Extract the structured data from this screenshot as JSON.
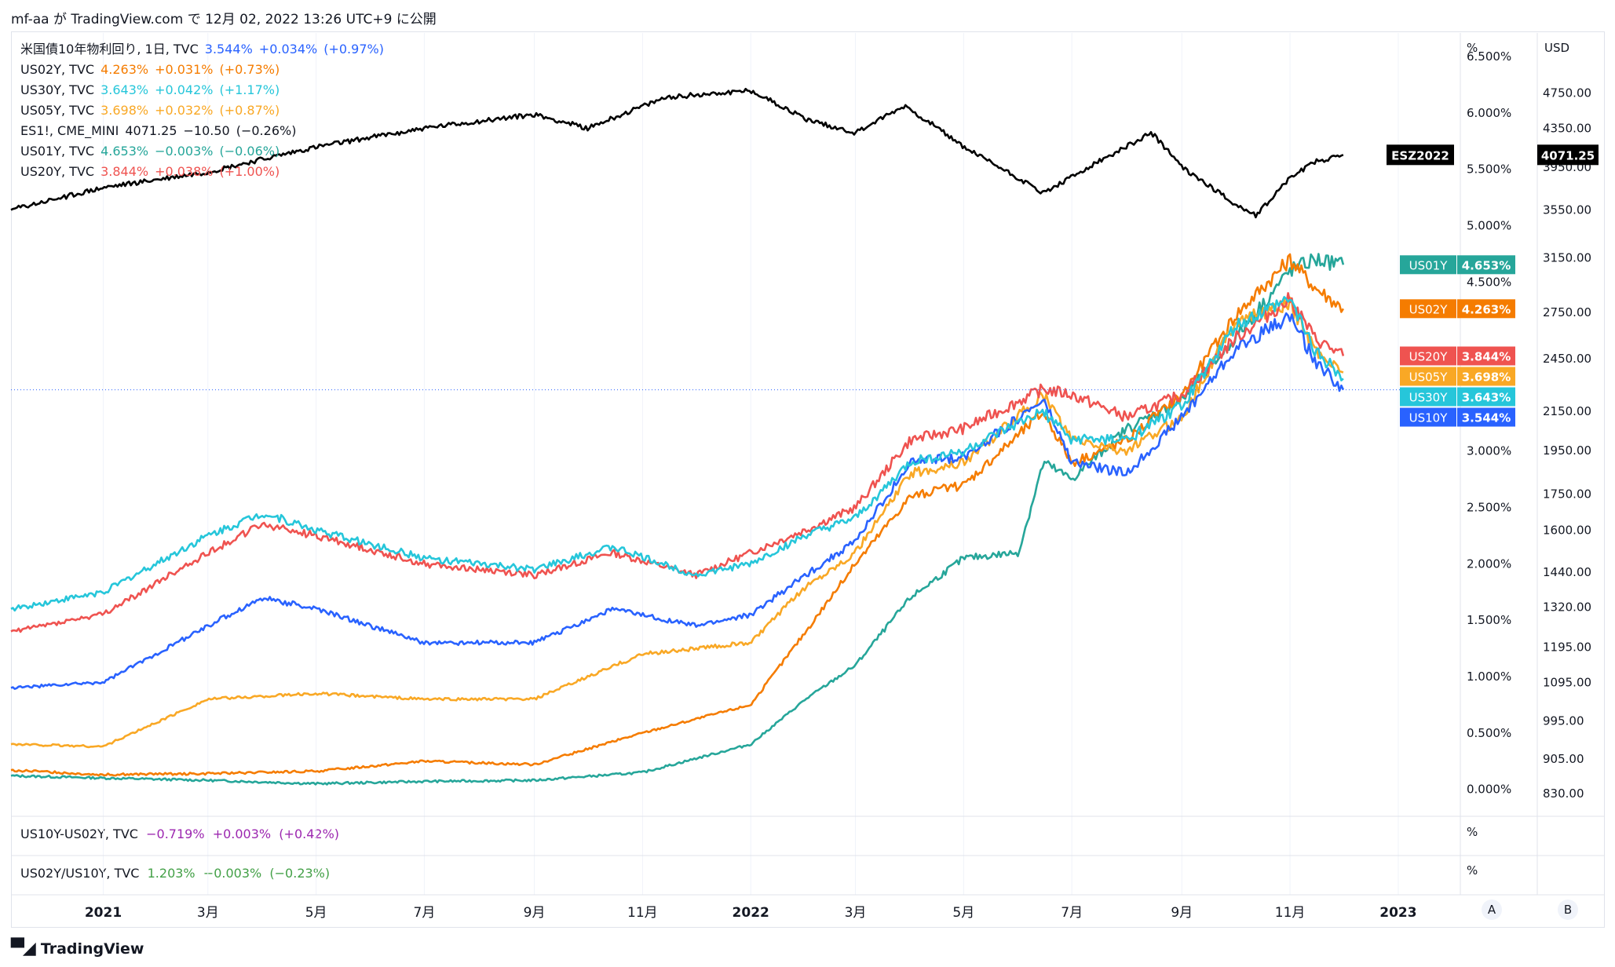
{
  "header": {
    "author": "mf-aa",
    "publish_prefix": "が",
    "site": "TradingView.com",
    "publish_mid": "で",
    "timestamp": "12月 02, 2022 13:26 UTC+9",
    "publish_suffix": "に公開"
  },
  "footer": {
    "brand": "TradingView"
  },
  "axis_buttons": {
    "auto": "A",
    "log": "B"
  },
  "legend": [
    {
      "symbol": "米国債10年物利回り, 1日, TVC",
      "last": "3.544%",
      "change": "+0.034%",
      "change_pct": "(+0.97%)",
      "color": "#2962ff"
    },
    {
      "symbol": "US02Y, TVC",
      "last": "4.263%",
      "change": "+0.031%",
      "change_pct": "(+0.73%)",
      "color": "#f57c00"
    },
    {
      "symbol": "US30Y, TVC",
      "last": "3.643%",
      "change": "+0.042%",
      "change_pct": "(+1.17%)",
      "color": "#26c6da"
    },
    {
      "symbol": "US05Y, TVC",
      "last": "3.698%",
      "change": "+0.032%",
      "change_pct": "(+0.87%)",
      "color": "#f9a825"
    },
    {
      "symbol": "ES1!, CME_MINI",
      "last": "4071.25",
      "change": "−10.50",
      "change_pct": "(−0.26%)",
      "color": "#000000"
    },
    {
      "symbol": "US01Y, TVC",
      "last": "4.653%",
      "change": "−0.003%",
      "change_pct": "(−0.06%)",
      "color": "#26a69a"
    },
    {
      "symbol": "US20Y, TVC",
      "last": "3.844%",
      "change": "+0.038%",
      "change_pct": "(+1.00%)",
      "color": "#ef5350"
    }
  ],
  "sub_panes": [
    {
      "symbol": "US10Y-US02Y, TVC",
      "last": "−0.719%",
      "change": "+0.003%",
      "change_pct": "(+0.42%)",
      "color": "#9c27b0",
      "unit": "%"
    },
    {
      "symbol": "US02Y/US10Y, TVC",
      "last": "1.203%",
      "change": "−0.003%",
      "change_pct": "(−0.23%)",
      "color": "#43a047",
      "unit": "%"
    }
  ],
  "chart_data": {
    "type": "line",
    "x_ticks": [
      "2021",
      "3月",
      "5月",
      "7月",
      "9月",
      "11月",
      "2022",
      "3月",
      "5月",
      "7月",
      "9月",
      "11月",
      "2023"
    ],
    "x_tick_dates": [
      "2021-01-01",
      "2021-03-01",
      "2021-05-01",
      "2021-07-01",
      "2021-09-01",
      "2021-11-01",
      "2022-01-01",
      "2022-03-01",
      "2022-05-01",
      "2022-07-01",
      "2022-09-01",
      "2022-11-01",
      "2023-01-01"
    ],
    "x_range": [
      "2020-11-10",
      "2023-02-05"
    ],
    "left_axis": {
      "unit": "%",
      "ticks": [
        "0.000%",
        "0.500%",
        "1.000%",
        "1.500%",
        "2.000%",
        "2.500%",
        "3.000%",
        "4.500%",
        "5.000%",
        "5.500%",
        "6.000%",
        "6.500%"
      ],
      "range": [
        -0.1,
        6.5
      ]
    },
    "right_axis": {
      "unit": "USD",
      "scale": "log",
      "ticks": [
        "830.00",
        "905.00",
        "995.00",
        "1095.00",
        "1195.00",
        "1320.00",
        "1440.00",
        "1600.00",
        "1750.00",
        "1950.00",
        "2150.00",
        "2450.00",
        "2750.00",
        "3150.00",
        "3550.00",
        "3950.00",
        "4350.00",
        "4750.00"
      ],
      "range": [
        800,
        5100
      ]
    },
    "yield_axis_note": "yields are each auto-scaled to the pane",
    "series": [
      {
        "name": "US01Y",
        "color": "#26a69a",
        "axis": "left",
        "label": "4.653%",
        "points": [
          [
            "2020-11-10",
            0.12
          ],
          [
            "2021-01-01",
            0.1
          ],
          [
            "2021-03-01",
            0.08
          ],
          [
            "2021-05-01",
            0.05
          ],
          [
            "2021-07-01",
            0.07
          ],
          [
            "2021-09-01",
            0.08
          ],
          [
            "2021-11-01",
            0.15
          ],
          [
            "2022-01-01",
            0.4
          ],
          [
            "2022-02-01",
            0.8
          ],
          [
            "2022-03-01",
            1.1
          ],
          [
            "2022-04-01",
            1.7
          ],
          [
            "2022-05-01",
            2.05
          ],
          [
            "2022-06-01",
            2.1
          ],
          [
            "2022-06-15",
            2.9
          ],
          [
            "2022-07-01",
            2.75
          ],
          [
            "2022-08-01",
            3.2
          ],
          [
            "2022-09-01",
            3.45
          ],
          [
            "2022-10-01",
            4.0
          ],
          [
            "2022-11-01",
            4.6
          ],
          [
            "2022-11-15",
            4.7
          ],
          [
            "2022-12-01",
            4.653
          ]
        ]
      },
      {
        "name": "US02Y",
        "color": "#f57c00",
        "axis": "left",
        "label": "4.263%",
        "points": [
          [
            "2020-11-10",
            0.17
          ],
          [
            "2021-01-01",
            0.13
          ],
          [
            "2021-03-01",
            0.14
          ],
          [
            "2021-05-01",
            0.16
          ],
          [
            "2021-07-01",
            0.25
          ],
          [
            "2021-09-01",
            0.22
          ],
          [
            "2021-11-01",
            0.5
          ],
          [
            "2022-01-01",
            0.75
          ],
          [
            "2022-02-01",
            1.4
          ],
          [
            "2022-03-01",
            2.0
          ],
          [
            "2022-04-01",
            2.6
          ],
          [
            "2022-05-01",
            2.7
          ],
          [
            "2022-06-15",
            3.35
          ],
          [
            "2022-07-01",
            2.9
          ],
          [
            "2022-08-01",
            3.1
          ],
          [
            "2022-09-01",
            3.5
          ],
          [
            "2022-10-01",
            4.2
          ],
          [
            "2022-11-01",
            4.7
          ],
          [
            "2022-11-15",
            4.45
          ],
          [
            "2022-12-01",
            4.263
          ]
        ]
      },
      {
        "name": "US05Y",
        "color": "#f9a825",
        "axis": "left",
        "label": "3.698%",
        "points": [
          [
            "2020-11-10",
            0.4
          ],
          [
            "2021-01-01",
            0.38
          ],
          [
            "2021-03-01",
            0.8
          ],
          [
            "2021-05-01",
            0.85
          ],
          [
            "2021-07-01",
            0.8
          ],
          [
            "2021-09-01",
            0.8
          ],
          [
            "2021-11-01",
            1.2
          ],
          [
            "2022-01-01",
            1.3
          ],
          [
            "2022-02-01",
            1.8
          ],
          [
            "2022-03-01",
            2.1
          ],
          [
            "2022-04-01",
            2.8
          ],
          [
            "2022-05-01",
            2.9
          ],
          [
            "2022-06-15",
            3.5
          ],
          [
            "2022-07-01",
            3.1
          ],
          [
            "2022-08-01",
            3.0
          ],
          [
            "2022-09-01",
            3.3
          ],
          [
            "2022-10-01",
            4.15
          ],
          [
            "2022-11-01",
            4.3
          ],
          [
            "2022-11-15",
            3.9
          ],
          [
            "2022-12-01",
            3.698
          ]
        ]
      },
      {
        "name": "US10Y",
        "color": "#2962ff",
        "axis": "left",
        "label": "3.544%",
        "points": [
          [
            "2020-11-10",
            0.9
          ],
          [
            "2021-01-01",
            0.95
          ],
          [
            "2021-03-01",
            1.45
          ],
          [
            "2021-04-01",
            1.7
          ],
          [
            "2021-05-01",
            1.6
          ],
          [
            "2021-07-01",
            1.3
          ],
          [
            "2021-09-01",
            1.3
          ],
          [
            "2021-10-15",
            1.6
          ],
          [
            "2021-12-01",
            1.45
          ],
          [
            "2022-01-01",
            1.55
          ],
          [
            "2022-02-01",
            1.9
          ],
          [
            "2022-03-01",
            2.2
          ],
          [
            "2022-04-01",
            2.9
          ],
          [
            "2022-05-01",
            2.95
          ],
          [
            "2022-06-15",
            3.45
          ],
          [
            "2022-07-01",
            2.9
          ],
          [
            "2022-08-01",
            2.8
          ],
          [
            "2022-09-01",
            3.3
          ],
          [
            "2022-10-01",
            3.9
          ],
          [
            "2022-11-01",
            4.2
          ],
          [
            "2022-11-15",
            3.8
          ],
          [
            "2022-12-01",
            3.544
          ]
        ]
      },
      {
        "name": "US20Y",
        "color": "#ef5350",
        "axis": "left",
        "label": "3.844%",
        "points": [
          [
            "2020-11-10",
            1.4
          ],
          [
            "2021-01-01",
            1.55
          ],
          [
            "2021-03-01",
            2.1
          ],
          [
            "2021-04-01",
            2.35
          ],
          [
            "2021-05-01",
            2.25
          ],
          [
            "2021-07-01",
            2.0
          ],
          [
            "2021-09-01",
            1.9
          ],
          [
            "2021-10-15",
            2.1
          ],
          [
            "2021-12-01",
            1.9
          ],
          [
            "2022-01-01",
            2.1
          ],
          [
            "2022-02-01",
            2.3
          ],
          [
            "2022-03-01",
            2.5
          ],
          [
            "2022-04-01",
            3.1
          ],
          [
            "2022-05-01",
            3.2
          ],
          [
            "2022-06-15",
            3.55
          ],
          [
            "2022-07-01",
            3.5
          ],
          [
            "2022-08-01",
            3.3
          ],
          [
            "2022-09-01",
            3.5
          ],
          [
            "2022-10-01",
            4.0
          ],
          [
            "2022-11-01",
            4.35
          ],
          [
            "2022-11-15",
            4.0
          ],
          [
            "2022-12-01",
            3.844
          ]
        ]
      },
      {
        "name": "US30Y",
        "color": "#26c6da",
        "axis": "left",
        "label": "3.643%",
        "points": [
          [
            "2020-11-10",
            1.6
          ],
          [
            "2021-01-01",
            1.75
          ],
          [
            "2021-03-01",
            2.25
          ],
          [
            "2021-04-01",
            2.45
          ],
          [
            "2021-05-01",
            2.3
          ],
          [
            "2021-07-01",
            2.05
          ],
          [
            "2021-09-01",
            1.95
          ],
          [
            "2021-10-15",
            2.15
          ],
          [
            "2021-12-01",
            1.9
          ],
          [
            "2022-01-01",
            2.0
          ],
          [
            "2022-02-01",
            2.25
          ],
          [
            "2022-03-01",
            2.4
          ],
          [
            "2022-04-01",
            2.9
          ],
          [
            "2022-05-01",
            3.0
          ],
          [
            "2022-06-15",
            3.35
          ],
          [
            "2022-07-01",
            3.1
          ],
          [
            "2022-08-01",
            3.1
          ],
          [
            "2022-09-01",
            3.4
          ],
          [
            "2022-10-01",
            4.1
          ],
          [
            "2022-11-01",
            4.35
          ],
          [
            "2022-11-15",
            3.9
          ],
          [
            "2022-12-01",
            3.643
          ]
        ]
      },
      {
        "name": "ESZ2022",
        "color": "#000000",
        "axis": "right",
        "label": "4071.25",
        "points": [
          [
            "2020-11-10",
            3550
          ],
          [
            "2021-01-01",
            3750
          ],
          [
            "2021-03-01",
            3900
          ],
          [
            "2021-05-01",
            4150
          ],
          [
            "2021-07-01",
            4350
          ],
          [
            "2021-09-01",
            4500
          ],
          [
            "2021-10-01",
            4350
          ],
          [
            "2021-11-15",
            4700
          ],
          [
            "2022-01-01",
            4780
          ],
          [
            "2022-02-01",
            4450
          ],
          [
            "2022-03-01",
            4300
          ],
          [
            "2022-03-29",
            4600
          ],
          [
            "2022-05-01",
            4150
          ],
          [
            "2022-06-15",
            3700
          ],
          [
            "2022-07-01",
            3850
          ],
          [
            "2022-08-15",
            4300
          ],
          [
            "2022-09-01",
            3950
          ],
          [
            "2022-10-01",
            3600
          ],
          [
            "2022-10-13",
            3500
          ],
          [
            "2022-11-01",
            3850
          ],
          [
            "2022-11-15",
            4000
          ],
          [
            "2022-12-01",
            4071.25
          ]
        ]
      }
    ]
  }
}
